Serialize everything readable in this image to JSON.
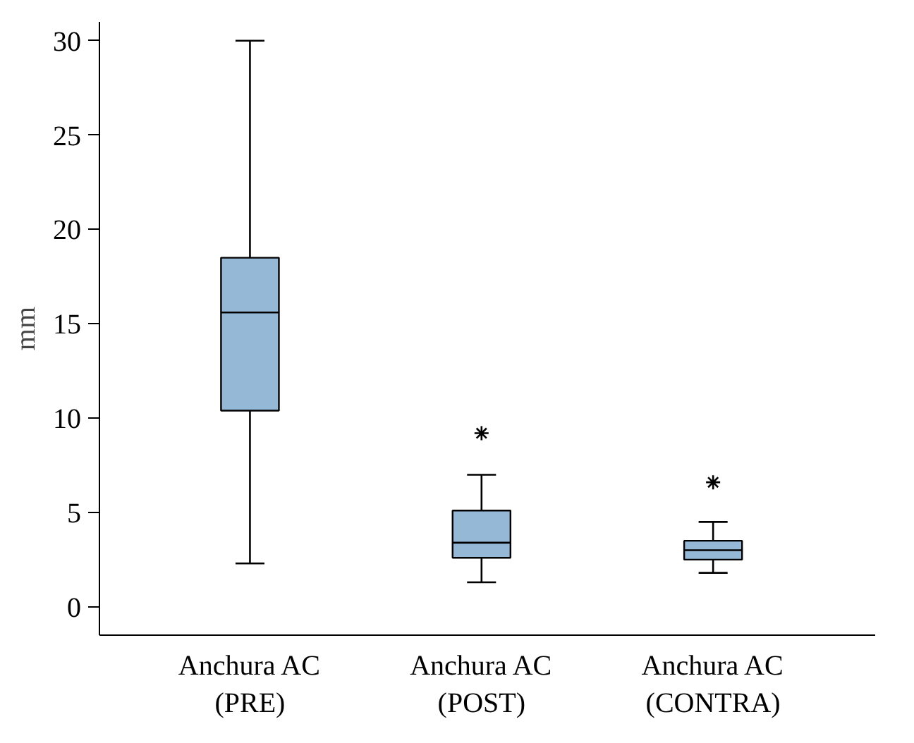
{
  "chart_data": {
    "type": "box",
    "ylabel": "mm",
    "categories": [
      "Anchura AC\n(PRE)",
      "Anchura AC\n(POST)",
      "Anchura AC\n(CONTRA)"
    ],
    "boxes": [
      {
        "low": 2.3,
        "q1": 10.4,
        "median": 15.6,
        "q3": 18.5,
        "high": 30
      },
      {
        "low": 1.3,
        "q1": 2.6,
        "median": 3.4,
        "q3": 5.1,
        "high": 7.0,
        "outliers": [
          9.2
        ]
      },
      {
        "low": 1.8,
        "q1": 2.5,
        "median": 3.0,
        "q3": 3.5,
        "high": 4.5,
        "outliers": [
          6.6
        ]
      }
    ],
    "color": "#95b8d6",
    "marker": "asterisk",
    "ylim": [
      -1.5,
      31
    ],
    "yticks": [
      0,
      5,
      10,
      15,
      20,
      25,
      30
    ],
    "grid": false
  }
}
